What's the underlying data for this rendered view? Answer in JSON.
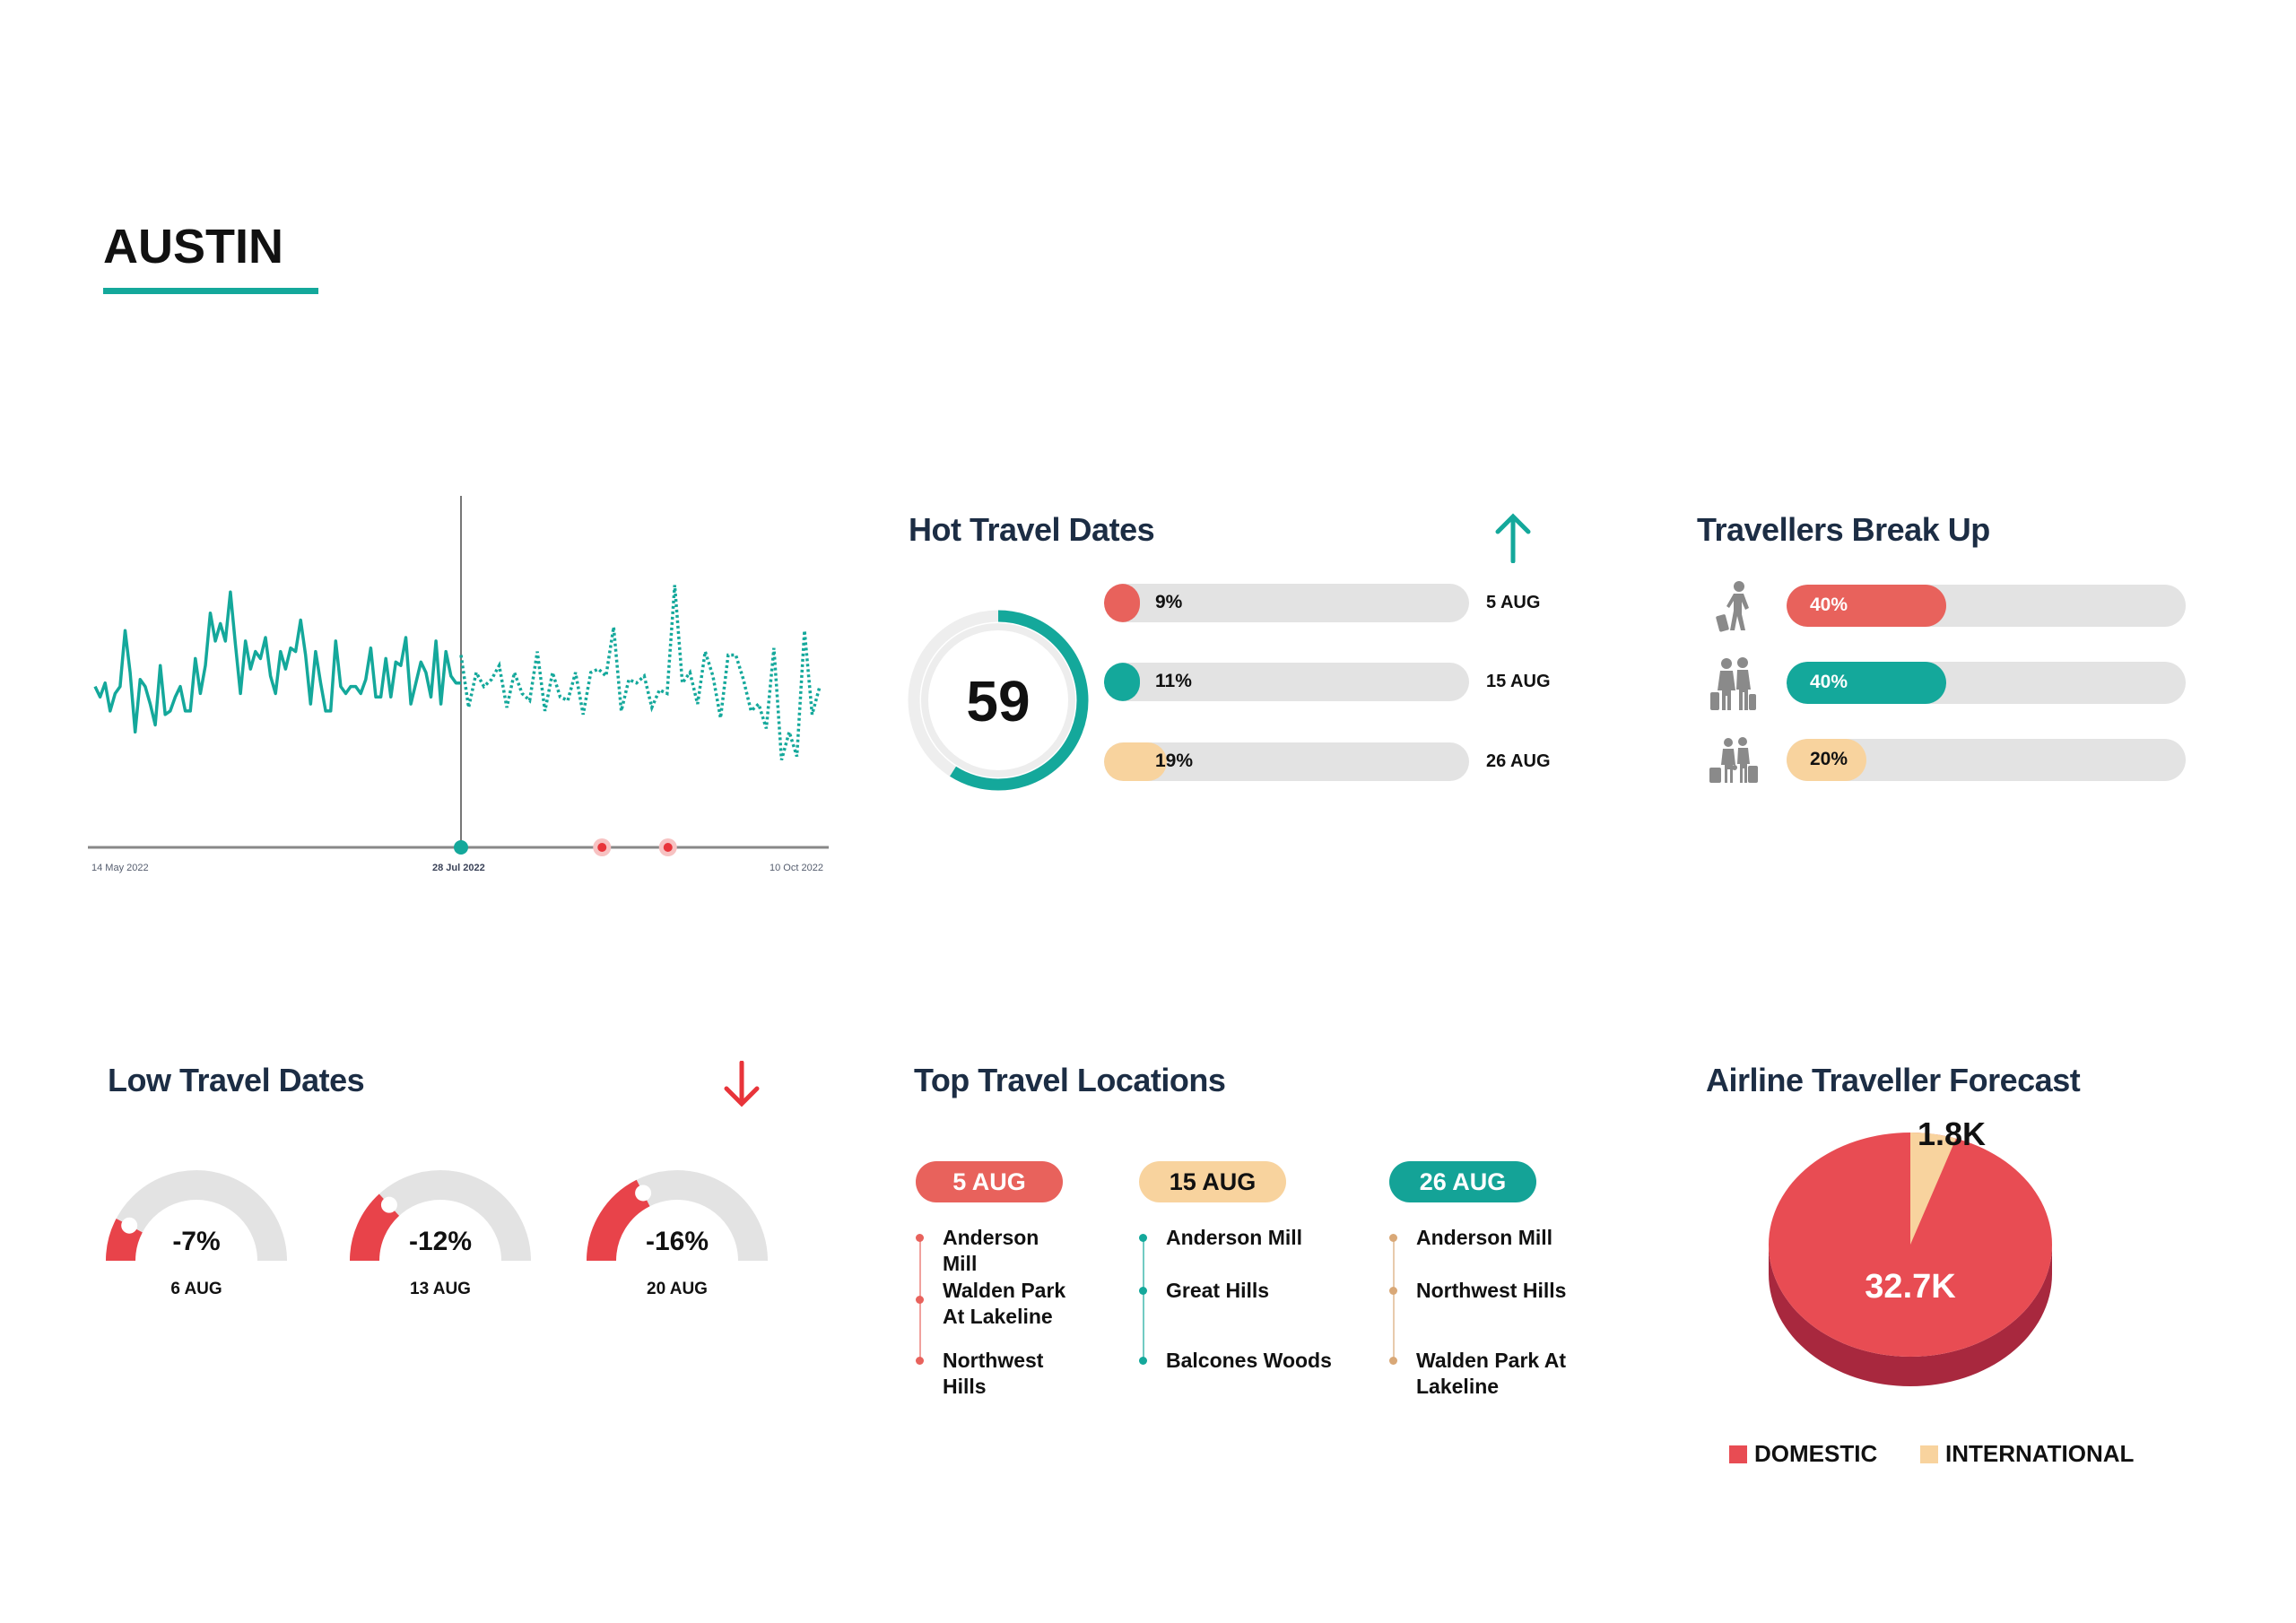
{
  "header": {
    "city": "AUSTIN"
  },
  "colors": {
    "navy": "#1c2d44",
    "teal": "#14a89b",
    "red": "#e8625c",
    "peach": "#f8d39e",
    "track": "#e3e3e3",
    "pie_domestic": "#e84c53",
    "pie_domestic_side": "#a8283e",
    "pie_international": "#f8d39e"
  },
  "trend_chart": {
    "type": "line",
    "x_ticks": [
      "14 May 2022",
      "28 Jul 2022",
      "10 Oct 2022"
    ],
    "highlight_tick": "28 Jul 2022",
    "actual": [
      46,
      43,
      47,
      39,
      44,
      46,
      62,
      50,
      33,
      48,
      46,
      41,
      35,
      52,
      38,
      39,
      43,
      46,
      39,
      39,
      54,
      44,
      52,
      67,
      59,
      64,
      59,
      73,
      58,
      44,
      59,
      51,
      56,
      54,
      60,
      49,
      44,
      56,
      51,
      57,
      56,
      65,
      55,
      41,
      56,
      47,
      39,
      39,
      59,
      46,
      44,
      46,
      46,
      44,
      48,
      57,
      43,
      43,
      54,
      43,
      53,
      52,
      60,
      41,
      47,
      53,
      50,
      43,
      59,
      41,
      56,
      49,
      47,
      47
    ],
    "forecast": [
      55,
      40,
      50,
      46,
      48,
      52,
      40,
      50,
      44,
      42,
      56,
      39,
      50,
      43,
      42,
      50,
      38,
      50,
      51,
      49,
      63,
      39,
      48,
      47,
      49,
      40,
      45,
      44,
      75,
      47,
      50,
      41,
      56,
      49,
      37,
      55,
      55,
      48,
      39,
      41,
      34,
      57,
      25,
      33,
      26,
      62,
      38,
      46
    ],
    "markers": [
      {
        "color": "#14a89b",
        "at": "28 Jul 2022"
      },
      {
        "color": "#e8343a",
        "position": 0.694
      },
      {
        "color": "#e8343a",
        "position": 0.783
      }
    ]
  },
  "hot_travel_dates": {
    "title": "Hot Travel Dates",
    "trend_icon": "arrow-up-icon",
    "score": "59",
    "score_value": 59,
    "rows": [
      {
        "pct": "9%",
        "value": 9,
        "date": "5 AUG",
        "color": "#e8625c"
      },
      {
        "pct": "11%",
        "value": 11,
        "date": "15 AUG",
        "color": "#14a89b"
      },
      {
        "pct": "19%",
        "value": 19,
        "date": "26 AUG",
        "color": "#f8d39e"
      }
    ]
  },
  "travellers_break_up": {
    "title": "Travellers Break Up",
    "rows": [
      {
        "icon": "solo-traveller-icon",
        "pct": "40%",
        "value": 40,
        "color": "#e8625c",
        "text_color": "#fff"
      },
      {
        "icon": "couple-traveller-icon",
        "pct": "40%",
        "value": 40,
        "color": "#14a89b",
        "text_color": "#fff"
      },
      {
        "icon": "family-traveller-icon",
        "pct": "20%",
        "value": 20,
        "color": "#f8d39e",
        "text_color": "#111"
      }
    ]
  },
  "low_travel_dates": {
    "title": "Low Travel Dates",
    "trend_icon": "arrow-down-icon",
    "gauges": [
      {
        "value": "-7%",
        "num": -7,
        "date": "6 AUG"
      },
      {
        "value": "-12%",
        "num": -12,
        "date": "13 AUG"
      },
      {
        "value": "-16%",
        "num": -16,
        "date": "20 AUG"
      }
    ]
  },
  "top_travel_locations": {
    "title": "Top Travel Locations",
    "columns": [
      {
        "date": "5 AUG",
        "color": "#e8625c",
        "text_color": "#fff",
        "items": [
          "Anderson Mill",
          "Walden Park At Lakeline",
          "Northwest Hills"
        ]
      },
      {
        "date": "15 AUG",
        "color": "#f8d39e",
        "text_color": "#111",
        "dot_color": "#14a89b",
        "items": [
          "Anderson Mill",
          "Great Hills",
          "Balcones Woods"
        ]
      },
      {
        "date": "26 AUG",
        "color": "#14a397",
        "text_color": "#fff",
        "dot_color": "#d9a877",
        "items": [
          "Anderson Mill",
          "Northwest Hills",
          "Walden Park At Lakeline"
        ]
      }
    ]
  },
  "chart_data": {
    "type": "pie",
    "title": "Airline Traveller Forecast",
    "categories": [
      "DOMESTIC",
      "INTERNATIONAL"
    ],
    "values": [
      32.7,
      1.8
    ],
    "data_labels": [
      "32.7K",
      "1.8K"
    ],
    "legend": "bottom"
  }
}
